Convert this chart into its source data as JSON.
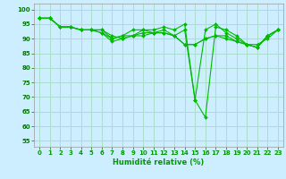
{
  "title": "",
  "xlabel": "Humidité relative (%)",
  "ylabel": "",
  "bg_color": "#cceeff",
  "grid_color": "#aaddcc",
  "line_color": "#00bb00",
  "marker_color": "#00bb00",
  "xlim": [
    -0.5,
    23.5
  ],
  "ylim": [
    53,
    102
  ],
  "yticks": [
    55,
    60,
    65,
    70,
    75,
    80,
    85,
    90,
    95,
    100
  ],
  "xticks": [
    0,
    1,
    2,
    3,
    4,
    5,
    6,
    7,
    8,
    9,
    10,
    11,
    12,
    13,
    14,
    15,
    16,
    17,
    18,
    19,
    20,
    21,
    22,
    23
  ],
  "series": [
    [
      97,
      97,
      94,
      94,
      93,
      93,
      92,
      89,
      90,
      91,
      91,
      92,
      92,
      91,
      93,
      69,
      63,
      94,
      93,
      91,
      88,
      87,
      91,
      93
    ],
    [
      97,
      97,
      94,
      94,
      93,
      93,
      92,
      90,
      91,
      93,
      93,
      93,
      94,
      93,
      95,
      69,
      93,
      95,
      92,
      90,
      88,
      87,
      91,
      93
    ],
    [
      97,
      97,
      94,
      94,
      93,
      93,
      93,
      90,
      91,
      91,
      93,
      92,
      92,
      91,
      88,
      88,
      90,
      91,
      91,
      89,
      88,
      88,
      90,
      93
    ],
    [
      97,
      97,
      94,
      94,
      93,
      93,
      93,
      91,
      90,
      91,
      92,
      92,
      93,
      91,
      88,
      88,
      90,
      91,
      90,
      89,
      88,
      87,
      91,
      93
    ]
  ]
}
